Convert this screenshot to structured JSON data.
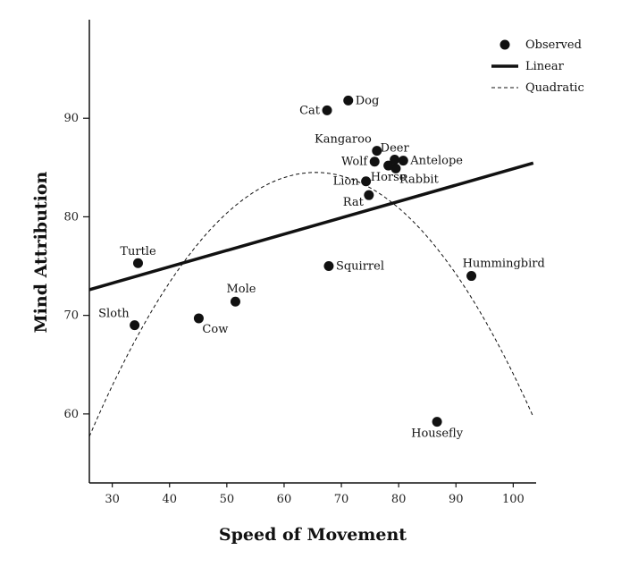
{
  "chart_data": {
    "type": "scatter",
    "title": "",
    "xlabel": "Speed of Movement",
    "ylabel": "Mind Attribution",
    "xlim": [
      26,
      104
    ],
    "ylim": [
      53,
      100
    ],
    "xticks": [
      "30",
      "40",
      "50",
      "60",
      "70",
      "80",
      "90",
      "100"
    ],
    "yticks": [
      "60",
      "70",
      "80",
      "90"
    ],
    "grid": false,
    "legend": {
      "placement": "top-right",
      "entries": [
        {
          "name": "Observed",
          "style": "marker"
        },
        {
          "name": "Linear",
          "style": "solid-thick"
        },
        {
          "name": "Quadratic",
          "style": "dashed"
        }
      ]
    },
    "points": [
      {
        "label": "Cat",
        "x": 67.5,
        "y": 90.8,
        "anchor": "left"
      },
      {
        "label": "Dog",
        "x": 71.2,
        "y": 91.8,
        "anchor": "right"
      },
      {
        "label": "Kangaroo",
        "x": 76.2,
        "y": 86.7,
        "anchor": "above-left"
      },
      {
        "label": "Deer",
        "x": 79.3,
        "y": 85.8,
        "anchor": "above"
      },
      {
        "label": "Antelope",
        "x": 80.8,
        "y": 85.7,
        "anchor": "right"
      },
      {
        "label": "Wolf",
        "x": 75.8,
        "y": 85.6,
        "anchor": "left"
      },
      {
        "label": "Rabbit",
        "x": 79.5,
        "y": 84.9,
        "anchor": "below-right"
      },
      {
        "label": "Horse",
        "x": 78.2,
        "y": 85.2,
        "anchor": "below"
      },
      {
        "label": "Lion",
        "x": 74.3,
        "y": 83.6,
        "anchor": "left"
      },
      {
        "label": "Rat",
        "x": 74.8,
        "y": 82.2,
        "anchor": "below-left"
      },
      {
        "label": "Squirrel",
        "x": 67.8,
        "y": 75.0,
        "anchor": "right"
      },
      {
        "label": "Hummingbird",
        "x": 92.7,
        "y": 74.0,
        "anchor": "above-right"
      },
      {
        "label": "Turtle",
        "x": 34.5,
        "y": 75.3,
        "anchor": "above"
      },
      {
        "label": "Mole",
        "x": 51.5,
        "y": 71.4,
        "anchor": "above-right"
      },
      {
        "label": "Sloth",
        "x": 33.9,
        "y": 69.0,
        "anchor": "above-left"
      },
      {
        "label": "Cow",
        "x": 45.1,
        "y": 69.7,
        "anchor": "below-right"
      },
      {
        "label": "Housefly",
        "x": 86.7,
        "y": 59.2,
        "anchor": "below"
      }
    ],
    "series": [
      {
        "name": "Linear",
        "type": "line",
        "intercept": 68.3,
        "slope": 0.1657
      },
      {
        "name": "Quadratic",
        "type": "curve",
        "vertex_x": 65.5,
        "vertex_y": 84.5,
        "a": -0.01717
      }
    ]
  }
}
